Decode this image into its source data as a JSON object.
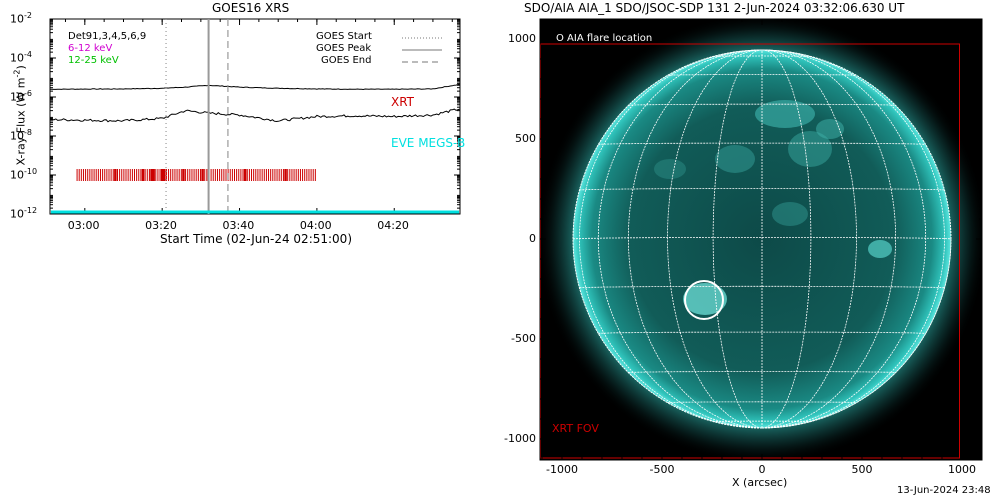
{
  "goes_panel": {
    "title": "GOES16 XRS",
    "ylabel": "X-ray Flux (W m",
    "ylabel_sup": "-2",
    "ylabel_close": ")",
    "xlabel": "Start Time (02-Jun-24 02:51:00)",
    "y_ticks": [
      {
        "base": "10",
        "exp": "-2"
      },
      {
        "base": "10",
        "exp": "-4"
      },
      {
        "base": "10",
        "exp": "-6"
      },
      {
        "base": "10",
        "exp": "-8"
      },
      {
        "base": "10",
        "exp": "-10"
      },
      {
        "base": "10",
        "exp": "-12"
      }
    ],
    "x_ticks": [
      "03:00",
      "03:20",
      "03:40",
      "04:00",
      "04:20"
    ],
    "legend_left": [
      {
        "text": "Det91,3,4,5,6,9",
        "color": "#000000"
      },
      {
        "text": "6-12 keV",
        "color": "#d000d0"
      },
      {
        "text": "12-25 keV",
        "color": "#00c000"
      }
    ],
    "legend_right": [
      {
        "text": "GOES Start",
        "style": "dotted"
      },
      {
        "text": "GOES Peak",
        "style": "solid"
      },
      {
        "text": "GOES End",
        "style": "dashed"
      }
    ],
    "xrt_label": "XRT",
    "eve_label": "EVE MEGS-B",
    "colors": {
      "xrt": "#cc0000",
      "eve": "#00e0e0",
      "grey_line": "#999999"
    }
  },
  "aia_panel": {
    "title": "SDO/AIA AIA_1 SDO/JSOC-SDP 131  2-Jun-2024 03:32:06.630 UT",
    "legend": "O AIA flare location",
    "xrt_fov_label": "XRT FOV",
    "xlabel": "X (arcsec)",
    "x_ticks": [
      "-1000",
      "-500",
      "0",
      "500",
      "1000"
    ],
    "y_ticks": [
      "1000",
      "500",
      "0",
      "-500",
      "-1000"
    ],
    "colors": {
      "disk": "#1ea9a3",
      "fov": "#cc0000"
    }
  },
  "footer": {
    "timestamp": "13-Jun-2024 23:48"
  },
  "chart_data": [
    {
      "type": "line",
      "title": "GOES16 XRS",
      "xlabel": "Start Time (02-Jun-24 02:51:00)",
      "ylabel": "X-ray Flux (W m^-2)",
      "y_scale": "log",
      "ylim": [
        1e-12,
        0.01
      ],
      "xlim": [
        "02:51",
        "04:37"
      ],
      "series": [
        {
          "name": "",
          "x": [
            "02:51",
            "03:10",
            "03:20",
            "03:26",
            "03:32",
            "03:40",
            "03:50",
            "04:00",
            "04:10",
            "04:20",
            "04:30",
            "04:37"
          ],
          "values": [
            2.5e-06,
            2.6e-06,
            2.8e-06,
            3.2e-06,
            4e-06,
            3.2e-06,
            2.8e-06,
            2.6e-06,
            2.5e-06,
            2.5e-06,
            2.6e-06,
            4.5e-06
          ]
        },
        {
          "name": "",
          "x": [
            "02:51",
            "03:10",
            "03:20",
            "03:26",
            "03:32",
            "03:40",
            "03:50",
            "04:00",
            "04:10",
            "04:20",
            "04:30",
            "04:37"
          ],
          "values": [
            7e-08,
            6e-08,
            8e-08,
            2e-07,
            1.5e-07,
            1.2e-07,
            6e-08,
            1e-07,
            1.1e-07,
            1e-07,
            1.2e-07,
            2.5e-07
          ]
        },
        {
          "name": "EVE MEGS-B",
          "x": [
            "02:51",
            "04:37"
          ],
          "values": [
            1e-12,
            1e-12
          ]
        }
      ],
      "vlines": [
        {
          "label": "GOES Start",
          "x": "03:21"
        },
        {
          "label": "GOES Peak",
          "x": "03:32"
        },
        {
          "label": "GOES End",
          "x": "03:37"
        }
      ],
      "xrt_coverage": {
        "label": "XRT",
        "start": "02:58",
        "end": "04:00",
        "level": 1e-10
      }
    },
    {
      "type": "scatter",
      "title": "SDO/AIA AIA_1 SDO/JSOC-SDP 131  2-Jun-2024 03:32:06.630 UT",
      "xlabel": "X (arcsec)",
      "xlim": [
        -1100,
        1100
      ],
      "ylim": [
        -1100,
        1000
      ],
      "solar_radius_arcsec": 946,
      "flare_location": {
        "x": -290,
        "y": -300,
        "label": "O AIA flare location"
      },
      "xrt_fov": {
        "label": "XRT FOV",
        "xmin": -1000,
        "xmax": 1000,
        "ymin": -1100,
        "ymax": 975
      }
    }
  ]
}
